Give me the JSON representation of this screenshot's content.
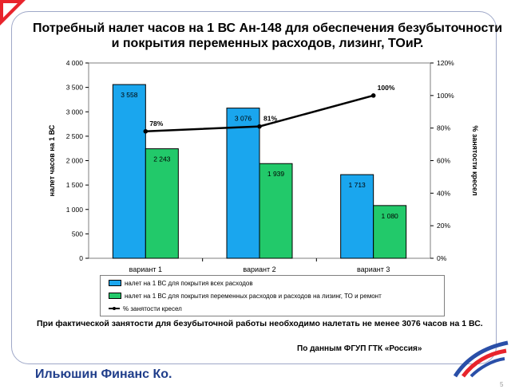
{
  "title": "Потребный налет часов на 1 ВС Ан-148 для обеспечения безубыточности и покрытия переменных  расходов, лизинг, ТОиР.",
  "chart_data": {
    "type": "bar",
    "categories": [
      "вариант 1",
      "вариант 2",
      "вариант 3"
    ],
    "series": [
      {
        "name": "налет на 1 ВС для покрытия всех расходов",
        "values": [
          3558,
          3076,
          1713
        ],
        "labels": [
          "3 558",
          "3 076",
          "1 713"
        ],
        "color": "#1aa6ee"
      },
      {
        "name": "налет на 1 ВС для покрытия переменных расходов и расходов на лизинг, ТО и ремонт",
        "values": [
          2243,
          1939,
          1080
        ],
        "labels": [
          "2 243",
          "1 939",
          "1 080"
        ],
        "color": "#22c96a"
      }
    ],
    "line_series": {
      "name": "% занятости кресел",
      "values": [
        78,
        81,
        100
      ],
      "labels": [
        "78%",
        "81%",
        "100%"
      ],
      "axis": "right"
    },
    "ylabel": "налет часов на 1 ВС",
    "y2label": "% занятости кресел",
    "ylim": [
      0,
      4000
    ],
    "y2lim": [
      0,
      120
    ],
    "yticks": [
      "0",
      "500",
      "1 000",
      "1 500",
      "2 000",
      "2 500",
      "3 000",
      "3 500",
      "4 000"
    ],
    "y2ticks": [
      "0%",
      "20%",
      "40%",
      "60%",
      "80%",
      "100%",
      "120%"
    ],
    "grid": false,
    "legend_position": "bottom"
  },
  "note": "При фактической занятости для безубыточной работы необходимо  налетать не менее 3076 часов на 1 ВС.",
  "source": "По данным ФГУП ГТК «Россия»",
  "brand": "Ильюшин Финанс Ко.",
  "page_number": "5",
  "colors": {
    "bar_blue": "#1aa6ee",
    "bar_green": "#22c96a",
    "plot_bg": "#ffffff",
    "brand": "#1f3d8a",
    "accent_red": "#e8242c"
  },
  "icons": {
    "corner": "red-corner-triangle-icon",
    "logo": "ilyushin-finance-logo-icon"
  }
}
